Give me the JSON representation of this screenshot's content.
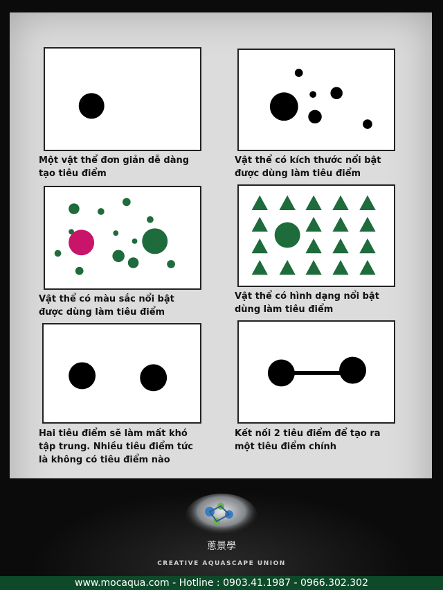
{
  "panels": [
    {
      "caption": "Một vật thể đơn giản dễ dàng\ntạo tiêu điểm"
    },
    {
      "caption": "Vật thể có kích thước nổi bật\nđược dùng làm tiêu điểm"
    },
    {
      "caption": "Vật thể có màu sắc nổi bật\nđược dùng làm tiêu điểm"
    },
    {
      "caption": "Vật thể có hình dạng nổi bật\ndùng làm tiêu điểm"
    },
    {
      "caption": "Hai tiêu điểm sẽ làm mất khó\ntập trung. Nhiều tiêu điểm tức\nlà không có tiêu điểm nào"
    },
    {
      "caption": "Kết nối 2 tiêu điểm để tạo ra\nmột tiêu điểm chính"
    }
  ],
  "colors": {
    "dot": "#000000",
    "green": "#1e6b3c",
    "magenta": "#c8156a",
    "footer_bar": "#0e4a2a"
  },
  "footer": {
    "logo_chars": "蔥景學",
    "org_name": "CREATIVE AQUASCAPE UNION",
    "contact": "www.mocaqua.com - Hotline : 0903.41.1987 - 0966.302.302"
  }
}
